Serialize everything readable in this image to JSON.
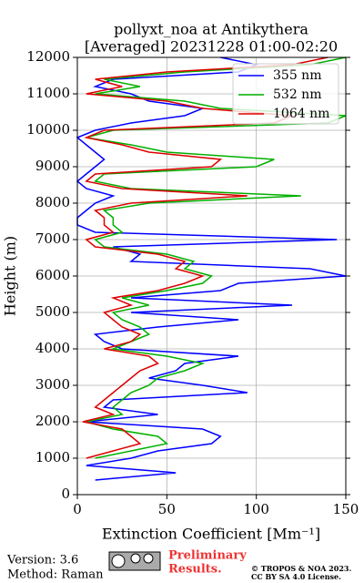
{
  "chart_data": {
    "type": "line",
    "orientation": "vertical",
    "title": [
      "pollyxt_noa at Antikythera",
      "[Averaged] 20231228 01:00-02:20"
    ],
    "x_label": "Extinction Coefficient [Mm⁻¹]",
    "y_label": "Height (m)",
    "heights": [
      0,
      200,
      400,
      600,
      800,
      1000,
      1200,
      1400,
      1600,
      1800,
      2000,
      2200,
      2400,
      2600,
      2800,
      3000,
      3200,
      3400,
      3600,
      3800,
      4000,
      4200,
      4400,
      4600,
      4800,
      5000,
      5200,
      5400,
      5600,
      5800,
      6000,
      6200,
      6400,
      6600,
      6800,
      7000,
      7200,
      7400,
      7600,
      7800,
      8000,
      8200,
      8400,
      8600,
      8800,
      9000,
      9200,
      9400,
      9600,
      9800,
      10000,
      10200,
      10400,
      10600,
      10800,
      11000,
      11200,
      11400,
      11600,
      11800,
      12000
    ],
    "series": [
      {
        "name": "355 nm",
        "color": "#0000ff",
        "values": [
          null,
          null,
          10,
          55,
          5,
          30,
          45,
          75,
          80,
          70,
          5,
          45,
          15,
          20,
          95,
          70,
          40,
          55,
          60,
          90,
          25,
          15,
          10,
          45,
          90,
          30,
          120,
          30,
          80,
          90,
          150,
          130,
          30,
          35,
          20,
          145,
          10,
          0,
          0,
          5,
          10,
          20,
          5,
          0,
          5,
          10,
          15,
          10,
          5,
          0,
          10,
          30,
          60,
          70,
          40,
          30,
          10,
          20,
          90,
          100,
          80
        ]
      },
      {
        "name": "532 nm",
        "color": "#00b000",
        "values": [
          null,
          null,
          null,
          5,
          null,
          10,
          30,
          50,
          45,
          20,
          5,
          25,
          20,
          25,
          30,
          40,
          45,
          60,
          70,
          50,
          20,
          30,
          40,
          35,
          25,
          20,
          40,
          25,
          50,
          70,
          75,
          60,
          65,
          50,
          15,
          10,
          25,
          20,
          20,
          15,
          40,
          125,
          30,
          10,
          15,
          100,
          110,
          50,
          30,
          5,
          20,
          140,
          150,
          80,
          60,
          10,
          35,
          15,
          60,
          130,
          150
        ]
      },
      {
        "name": "1064 nm",
        "color": "#dd0000",
        "values": [
          null,
          null,
          null,
          10,
          null,
          5,
          20,
          35,
          30,
          25,
          3,
          20,
          10,
          15,
          20,
          25,
          30,
          35,
          45,
          40,
          15,
          30,
          35,
          25,
          20,
          15,
          30,
          20,
          45,
          60,
          70,
          55,
          60,
          45,
          10,
          5,
          20,
          15,
          15,
          10,
          30,
          95,
          25,
          5,
          10,
          75,
          80,
          40,
          25,
          5,
          15,
          110,
          120,
          70,
          50,
          5,
          25,
          10,
          50,
          120,
          140
        ]
      }
    ],
    "xlim": [
      0,
      150
    ],
    "xticks": [
      0,
      50,
      100,
      150
    ],
    "ylim": [
      0,
      12000
    ],
    "yticks": [
      0,
      1000,
      2000,
      3000,
      4000,
      5000,
      6000,
      7000,
      8000,
      9000,
      10000,
      11000,
      12000
    ],
    "grid": true,
    "legend": "upper right"
  },
  "footer": {
    "version": "Version: 3.6",
    "method": "Method: Raman",
    "preliminary": [
      "Preliminary",
      "Results."
    ],
    "copyright": [
      "© TROPOS & NOA 2023.",
      "CC BY SA 4.0 License."
    ]
  }
}
